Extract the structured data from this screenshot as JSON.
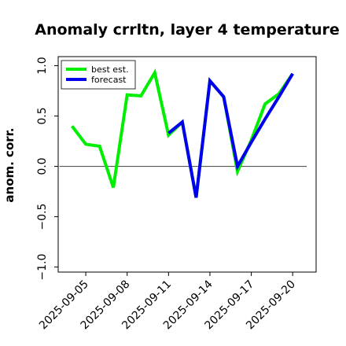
{
  "chart_data": {
    "type": "line",
    "title": "Anomaly crrltn, layer 4 temperature",
    "xlabel": "",
    "ylabel": "anom. corr.",
    "ylim": [
      -1.0,
      1.0
    ],
    "yticks": [
      "−1.0",
      "−0.5",
      "0.0",
      "0.5",
      "1.0"
    ],
    "ytick_values": [
      -1.0,
      -0.5,
      0.0,
      0.5,
      1.0
    ],
    "x": [
      "2025-09-04",
      "2025-09-05",
      "2025-09-06",
      "2025-09-07",
      "2025-09-08",
      "2025-09-09",
      "2025-09-10",
      "2025-09-11",
      "2025-09-12",
      "2025-09-13",
      "2025-09-14",
      "2025-09-15",
      "2025-09-16",
      "2025-09-17",
      "2025-09-18",
      "2025-09-19",
      "2025-09-20"
    ],
    "xticks": [
      "2025-09-05",
      "2025-09-08",
      "2025-09-11",
      "2025-09-14",
      "2025-09-17",
      "2025-09-20"
    ],
    "highlight_tick": "2025-09-11",
    "highlight_color": "#228b22",
    "grid": false,
    "legend_position": "top-left",
    "series": [
      {
        "name": "best est.",
        "color": "#00ee00",
        "x": [
          "2025-09-04",
          "2025-09-05",
          "2025-09-06",
          "2025-09-07",
          "2025-09-08",
          "2025-09-09",
          "2025-09-10",
          "2025-09-11",
          "2025-09-12",
          "2025-09-13",
          "2025-09-14",
          "2025-09-15",
          "2025-09-16",
          "2025-09-17",
          "2025-09-18",
          "2025-09-19",
          "2025-09-20"
        ],
        "values": [
          0.4,
          0.22,
          0.2,
          -0.21,
          0.71,
          0.7,
          0.93,
          0.31,
          0.44,
          -0.31,
          0.85,
          0.69,
          -0.05,
          0.26,
          0.62,
          0.72,
          0.92
        ]
      },
      {
        "name": "forecast",
        "color": "#0000ee",
        "x": [
          "2025-09-11",
          "2025-09-12",
          "2025-09-13",
          "2025-09-14",
          "2025-09-15",
          "2025-09-16",
          "2025-09-17",
          "2025-09-18",
          "2025-09-19",
          "2025-09-20"
        ],
        "values": [
          0.33,
          0.44,
          -0.31,
          0.85,
          0.69,
          0.0,
          0.24,
          0.47,
          0.69,
          0.92
        ]
      }
    ]
  }
}
